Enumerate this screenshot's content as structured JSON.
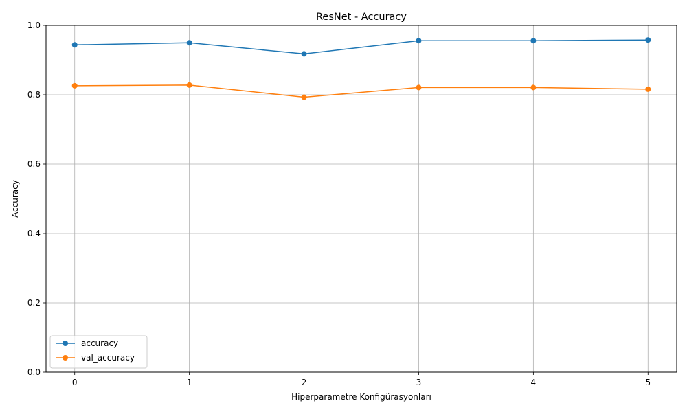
{
  "chart_data": {
    "type": "line",
    "title": "ResNet - Accuracy",
    "xlabel": "Hiperparametre Konfigürasyonları",
    "ylabel": "Accuracy",
    "x": [
      0,
      1,
      2,
      3,
      4,
      5
    ],
    "x_ticks": [
      "0",
      "1",
      "2",
      "3",
      "4",
      "5"
    ],
    "y_ticks": [
      "0.0",
      "0.2",
      "0.4",
      "0.6",
      "0.8",
      "1.0"
    ],
    "xlim": [
      -0.25,
      5.25
    ],
    "ylim": [
      0,
      1.0
    ],
    "grid": true,
    "legend_position": "lower left",
    "series": [
      {
        "name": "accuracy",
        "color": "#1f77b4",
        "marker": "circle",
        "values": [
          0.944,
          0.95,
          0.918,
          0.956,
          0.956,
          0.958
        ]
      },
      {
        "name": "val_accuracy",
        "color": "#ff7f0e",
        "marker": "circle",
        "values": [
          0.826,
          0.828,
          0.793,
          0.821,
          0.821,
          0.816
        ]
      }
    ]
  }
}
